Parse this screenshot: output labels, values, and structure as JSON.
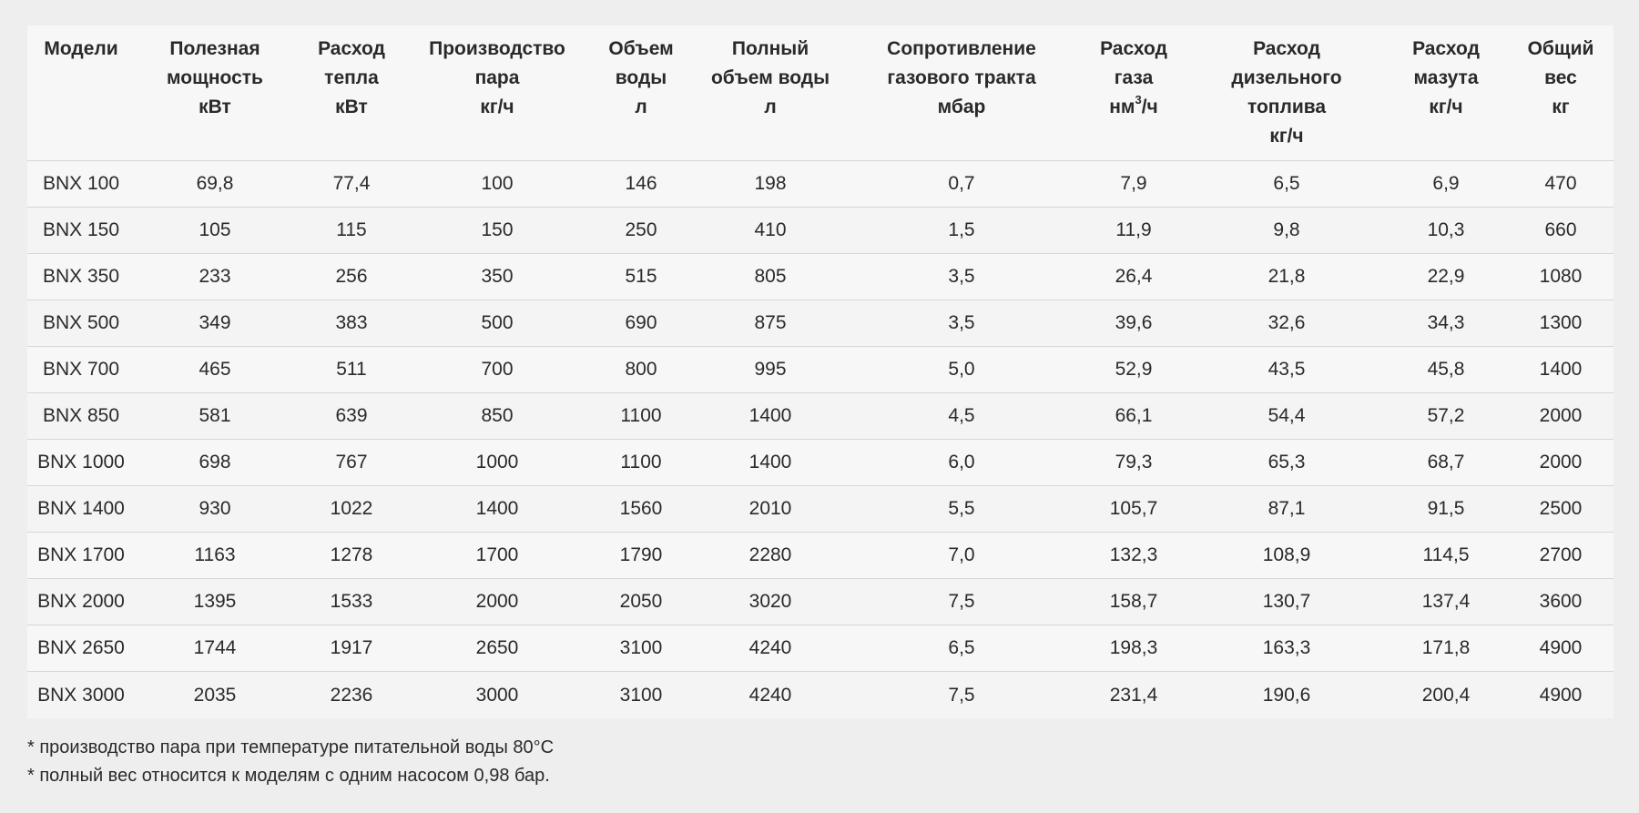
{
  "table": {
    "headers": [
      [
        "Модели"
      ],
      [
        "Полезная",
        "мощность",
        "кВт"
      ],
      [
        "Расход",
        "тепла",
        "кВт"
      ],
      [
        "Производство",
        "пара",
        "кг/ч"
      ],
      [
        "Объем",
        "воды",
        "л"
      ],
      [
        "Полный",
        "объем воды",
        "л"
      ],
      [
        "Сопротивление",
        "газового тракта",
        "мбар"
      ],
      [
        "Расход",
        "газа",
        "нм³/ч"
      ],
      [
        "Расход",
        "дизельного",
        "топлива",
        "кг/ч"
      ],
      [
        "Расход",
        "мазута",
        "кг/ч"
      ],
      [
        "Общий",
        "вес",
        "кг"
      ]
    ],
    "rows": [
      [
        "BNX 100",
        "69,8",
        "77,4",
        "100",
        "146",
        "198",
        "0,7",
        "7,9",
        "6,5",
        "6,9",
        "470"
      ],
      [
        "BNX 150",
        "105",
        "115",
        "150",
        "250",
        "410",
        "1,5",
        "11,9",
        "9,8",
        "10,3",
        "660"
      ],
      [
        "BNX 350",
        "233",
        "256",
        "350",
        "515",
        "805",
        "3,5",
        "26,4",
        "21,8",
        "22,9",
        "1080"
      ],
      [
        "BNX 500",
        "349",
        "383",
        "500",
        "690",
        "875",
        "3,5",
        "39,6",
        "32,6",
        "34,3",
        "1300"
      ],
      [
        "BNX 700",
        "465",
        "511",
        "700",
        "800",
        "995",
        "5,0",
        "52,9",
        "43,5",
        "45,8",
        "1400"
      ],
      [
        "BNX 850",
        "581",
        "639",
        "850",
        "1100",
        "1400",
        "4,5",
        "66,1",
        "54,4",
        "57,2",
        "2000"
      ],
      [
        "BNX 1000",
        "698",
        "767",
        "1000",
        "1100",
        "1400",
        "6,0",
        "79,3",
        "65,3",
        "68,7",
        "2000"
      ],
      [
        "BNX 1400",
        "930",
        "1022",
        "1400",
        "1560",
        "2010",
        "5,5",
        "105,7",
        "87,1",
        "91,5",
        "2500"
      ],
      [
        "BNX 1700",
        "1163",
        "1278",
        "1700",
        "1790",
        "2280",
        "7,0",
        "132,3",
        "108,9",
        "114,5",
        "2700"
      ],
      [
        "BNX 2000",
        "1395",
        "1533",
        "2000",
        "2050",
        "3020",
        "7,5",
        "158,7",
        "130,7",
        "137,4",
        "3600"
      ],
      [
        "BNX 2650",
        "1744",
        "1917",
        "2650",
        "3100",
        "4240",
        "6,5",
        "198,3",
        "163,3",
        "171,8",
        "4900"
      ],
      [
        "BNX 3000",
        "2035",
        "2236",
        "3000",
        "3100",
        "4240",
        "7,5",
        "231,4",
        "190,6",
        "200,4",
        "4900"
      ]
    ]
  },
  "notes": [
    "* производство пара при температуре питательной воды 80°C",
    "* полный вес относится к моделям с одним насосом 0,98 бар."
  ]
}
